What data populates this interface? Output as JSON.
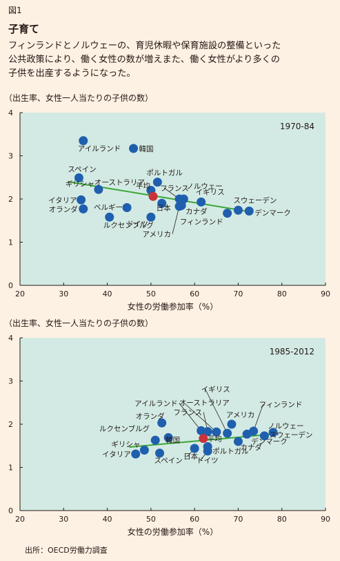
{
  "figure_label": "図1",
  "title": "子育て",
  "lead_lines": [
    "フィンランドとノルウェーの、育児休暇や保育施設の整備といった",
    "公共政策により、働く女性の数が増えまた、働く女性がより多くの",
    "子供を出産するようになった。"
  ],
  "source": "出所：OECD労働力調査",
  "colors": {
    "background": "#fdf1e3",
    "plot_bg": "#d3eae4",
    "point": "#1f5fae",
    "japan_point": "#c8333a",
    "trend": "#3aa635"
  },
  "chart_data": [
    {
      "type": "scatter",
      "period_label": "1970-84",
      "ylabel": "（出生率、女性一人当たりの子供の数）",
      "xlabel": "女性の労働参加率（%）",
      "xlim": [
        20,
        90
      ],
      "ylim": [
        0,
        4
      ],
      "xticks": [
        20,
        30,
        40,
        50,
        60,
        70,
        80,
        90
      ],
      "yticks": [
        0,
        1,
        2,
        3,
        4
      ],
      "trendline": [
        [
          31,
          2.4
        ],
        [
          73,
          1.7
        ]
      ],
      "points": [
        {
          "label": "アイルランド",
          "x": 34.5,
          "y": 3.35
        },
        {
          "label": "韓国",
          "x": 46,
          "y": 3.17
        },
        {
          "label": "スペイン",
          "x": 33.5,
          "y": 2.49
        },
        {
          "label": "ポルトガル",
          "x": 51.5,
          "y": 2.39
        },
        {
          "label": "ノルウェー",
          "x": 57.5,
          "y": 2.0
        },
        {
          "label": "オーストラリア",
          "x": 50,
          "y": 2.2
        },
        {
          "label": "ギリシャ",
          "x": 38,
          "y": 2.22
        },
        {
          "label": "フランス",
          "x": 56.5,
          "y": 2.0
        },
        {
          "label": "イギリス",
          "x": 61.5,
          "y": 1.93
        },
        {
          "label": "イタリア",
          "x": 34,
          "y": 1.98
        },
        {
          "label": "スウェーデン",
          "x": 70,
          "y": 1.74
        },
        {
          "label": "平均",
          "x": 50.5,
          "y": 2.06,
          "highlight": true
        },
        {
          "label": "ベルギー",
          "x": 44.5,
          "y": 1.8
        },
        {
          "label": "オランダ",
          "x": 34.5,
          "y": 1.77
        },
        {
          "label": "日本",
          "x": 52.5,
          "y": 1.9
        },
        {
          "label": "カナダ",
          "x": 57,
          "y": 1.85
        },
        {
          "label": "デンマーク",
          "x": 72.5,
          "y": 1.72
        },
        {
          "label": "ルクセンブルグ",
          "x": 40.5,
          "y": 1.58
        },
        {
          "label": "ドイツ",
          "x": 50,
          "y": 1.58
        },
        {
          "label": "フィンランド",
          "x": 67.5,
          "y": 1.67
        },
        {
          "label": "アメリカ",
          "x": 56.5,
          "y": 1.83
        }
      ]
    },
    {
      "type": "scatter",
      "period_label": "1985-2012",
      "ylabel": "（出生率、女性一人当たりの子供の数）",
      "xlabel": "女性の労働参加率（%）",
      "xlim": [
        20,
        90
      ],
      "ylim": [
        0,
        4
      ],
      "xticks": [
        20,
        30,
        40,
        50,
        60,
        70,
        80,
        90
      ],
      "yticks": [
        0,
        1,
        2,
        3,
        4
      ],
      "trendline": [
        [
          45,
          1.47
        ],
        [
          79,
          1.78
        ]
      ],
      "points": [
        {
          "label": "イギリス",
          "x": 67.5,
          "y": 1.79
        },
        {
          "label": "オーストラリア",
          "x": 65,
          "y": 1.82
        },
        {
          "label": "フィンランド",
          "x": 73.5,
          "y": 1.84
        },
        {
          "label": "オランダ",
          "x": 52.5,
          "y": 2.03
        },
        {
          "label": "アメリカ",
          "x": 68.5,
          "y": 2.0
        },
        {
          "label": "アイルランド",
          "x": 61.5,
          "y": 1.85
        },
        {
          "label": "フランス",
          "x": 63,
          "y": 1.83
        },
        {
          "label": "ノルウェー",
          "x": 78,
          "y": 1.81
        },
        {
          "label": "ルクセンブルグ",
          "x": 51,
          "y": 1.63
        },
        {
          "label": "平均",
          "x": 62,
          "y": 1.67,
          "highlight": true
        },
        {
          "label": "スウェーデン",
          "x": 76,
          "y": 1.73
        },
        {
          "label": "ギリシャ",
          "x": 48.5,
          "y": 1.4
        },
        {
          "label": "韓国",
          "x": 54,
          "y": 1.69
        },
        {
          "label": "デンマーク",
          "x": 72,
          "y": 1.77
        },
        {
          "label": "カナダ",
          "x": 70,
          "y": 1.6
        },
        {
          "label": "ポルトガル",
          "x": 63,
          "y": 1.48
        },
        {
          "label": "イタリア",
          "x": 46.5,
          "y": 1.31
        },
        {
          "label": "スペイン",
          "x": 52,
          "y": 1.33
        },
        {
          "label": "日本",
          "x": 60,
          "y": 1.44
        },
        {
          "label": "ドイツ",
          "x": 63,
          "y": 1.38
        }
      ]
    }
  ]
}
